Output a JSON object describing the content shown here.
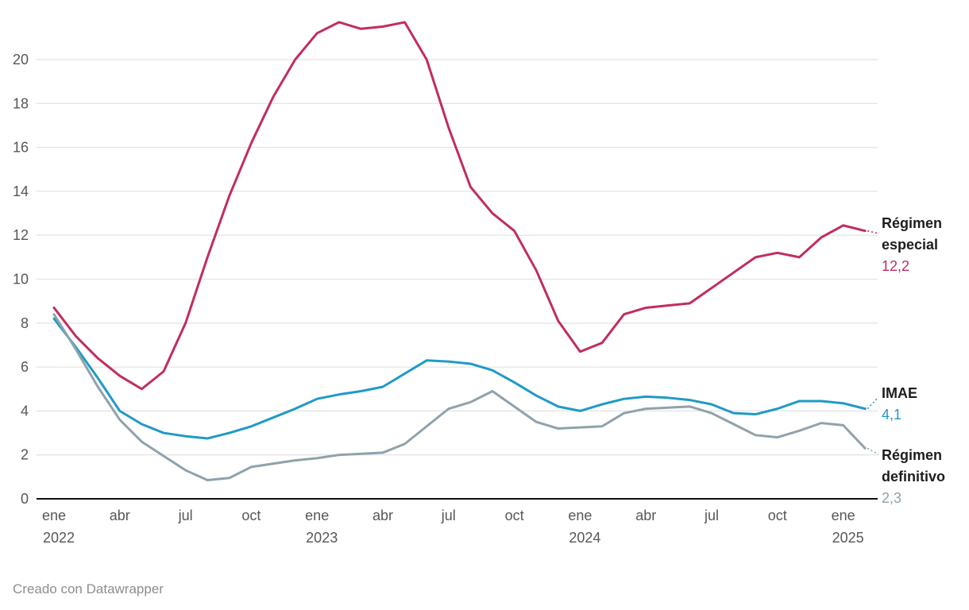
{
  "chart_data": {
    "type": "line",
    "x_unit": "month",
    "x_range": "ene 2022 - feb 2025",
    "ylim": [
      0,
      22
    ],
    "grid": "horizontal",
    "legend_position": "right-outside",
    "y_ticks": [
      0,
      2,
      4,
      6,
      8,
      10,
      12,
      14,
      16,
      18,
      20
    ],
    "x_ticks": [
      {
        "i": 0,
        "label": "ene",
        "year": "2022"
      },
      {
        "i": 3,
        "label": "abr"
      },
      {
        "i": 6,
        "label": "jul"
      },
      {
        "i": 9,
        "label": "oct"
      },
      {
        "i": 12,
        "label": "ene",
        "year": "2023"
      },
      {
        "i": 15,
        "label": "abr"
      },
      {
        "i": 18,
        "label": "jul"
      },
      {
        "i": 21,
        "label": "oct"
      },
      {
        "i": 24,
        "label": "ene",
        "year": "2024"
      },
      {
        "i": 27,
        "label": "abr"
      },
      {
        "i": 30,
        "label": "jul"
      },
      {
        "i": 33,
        "label": "oct"
      },
      {
        "i": 36,
        "label": "ene",
        "year": "2025"
      }
    ],
    "series": [
      {
        "name": "Régimen especial",
        "color": "#c22c60",
        "last_value_label": "12,2",
        "values": [
          8.7,
          7.4,
          6.4,
          5.6,
          5.0,
          5.8,
          8.0,
          11.0,
          13.8,
          16.2,
          18.3,
          20.0,
          21.2,
          21.7,
          21.4,
          21.5,
          21.7,
          20.0,
          16.9,
          14.2,
          13.0,
          12.2,
          10.4,
          8.1,
          6.7,
          7.1,
          8.4,
          8.7,
          8.8,
          8.9,
          9.6,
          10.3,
          11.0,
          11.2,
          11.0,
          11.9,
          12.45,
          12.2
        ]
      },
      {
        "name": "IMAE",
        "color": "#1f9ac6",
        "last_value_label": "4,1",
        "values": [
          8.2,
          6.9,
          5.5,
          4.0,
          3.4,
          3.0,
          2.85,
          2.75,
          3.0,
          3.3,
          3.7,
          4.1,
          4.55,
          4.75,
          4.9,
          5.1,
          5.7,
          6.3,
          6.25,
          6.15,
          5.85,
          5.3,
          4.7,
          4.2,
          4.0,
          4.3,
          4.55,
          4.65,
          4.6,
          4.5,
          4.3,
          3.9,
          3.85,
          4.1,
          4.45,
          4.45,
          4.35,
          4.1
        ]
      },
      {
        "name": "Régimen definitivo",
        "color": "#8fa2ab",
        "last_value_label": "2,3",
        "values": [
          8.4,
          6.8,
          5.1,
          3.6,
          2.6,
          1.95,
          1.3,
          0.85,
          0.95,
          1.45,
          1.6,
          1.75,
          1.85,
          2.0,
          2.05,
          2.1,
          2.5,
          3.3,
          4.1,
          4.4,
          4.9,
          4.2,
          3.5,
          3.2,
          3.25,
          3.3,
          3.9,
          4.1,
          4.15,
          4.2,
          3.9,
          3.4,
          2.9,
          2.8,
          3.1,
          3.45,
          3.35,
          2.3
        ]
      }
    ]
  },
  "labels": {
    "especial": {
      "name": "Régimen especial",
      "value": "12,2"
    },
    "imae": {
      "name": "IMAE",
      "value": "4,1"
    },
    "definitivo": {
      "name": "Régimen definitivo",
      "value": "2,3"
    }
  },
  "footer": {
    "credit": "Creado con Datawrapper"
  }
}
